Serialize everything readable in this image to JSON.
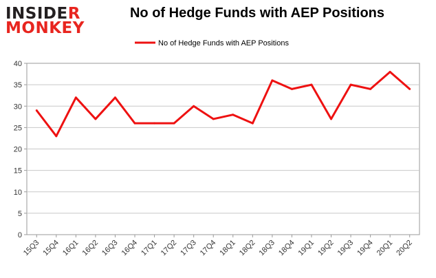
{
  "logo": {
    "line1": "INSIDER",
    "line2": "MONKEY"
  },
  "chart_data": {
    "type": "line",
    "title": "No of Hedge Funds with AEP Positions",
    "xlabel": "",
    "ylabel": "",
    "categories": [
      "15Q3",
      "15Q4",
      "16Q1",
      "16Q2",
      "16Q3",
      "16Q4",
      "17Q1",
      "17Q2",
      "17Q3",
      "17Q4",
      "18Q1",
      "18Q2",
      "18Q3",
      "18Q4",
      "19Q1",
      "19Q2",
      "19Q3",
      "19Q4",
      "20Q1",
      "20Q2"
    ],
    "series": [
      {
        "name": "No of Hedge Funds with AEP Positions",
        "values": [
          29,
          23,
          32,
          27,
          32,
          26,
          26,
          26,
          30,
          27,
          28,
          26,
          36,
          34,
          35,
          27,
          35,
          34,
          38,
          34
        ]
      }
    ],
    "ylim": [
      0,
      40
    ],
    "yticks": [
      0,
      5,
      10,
      15,
      20,
      25,
      30,
      35,
      40
    ],
    "grid": true,
    "legend_position": "top-center",
    "colors": {
      "line": "#ee1111",
      "logo_red": "#e8251f",
      "logo_dark": "#231f20"
    }
  }
}
